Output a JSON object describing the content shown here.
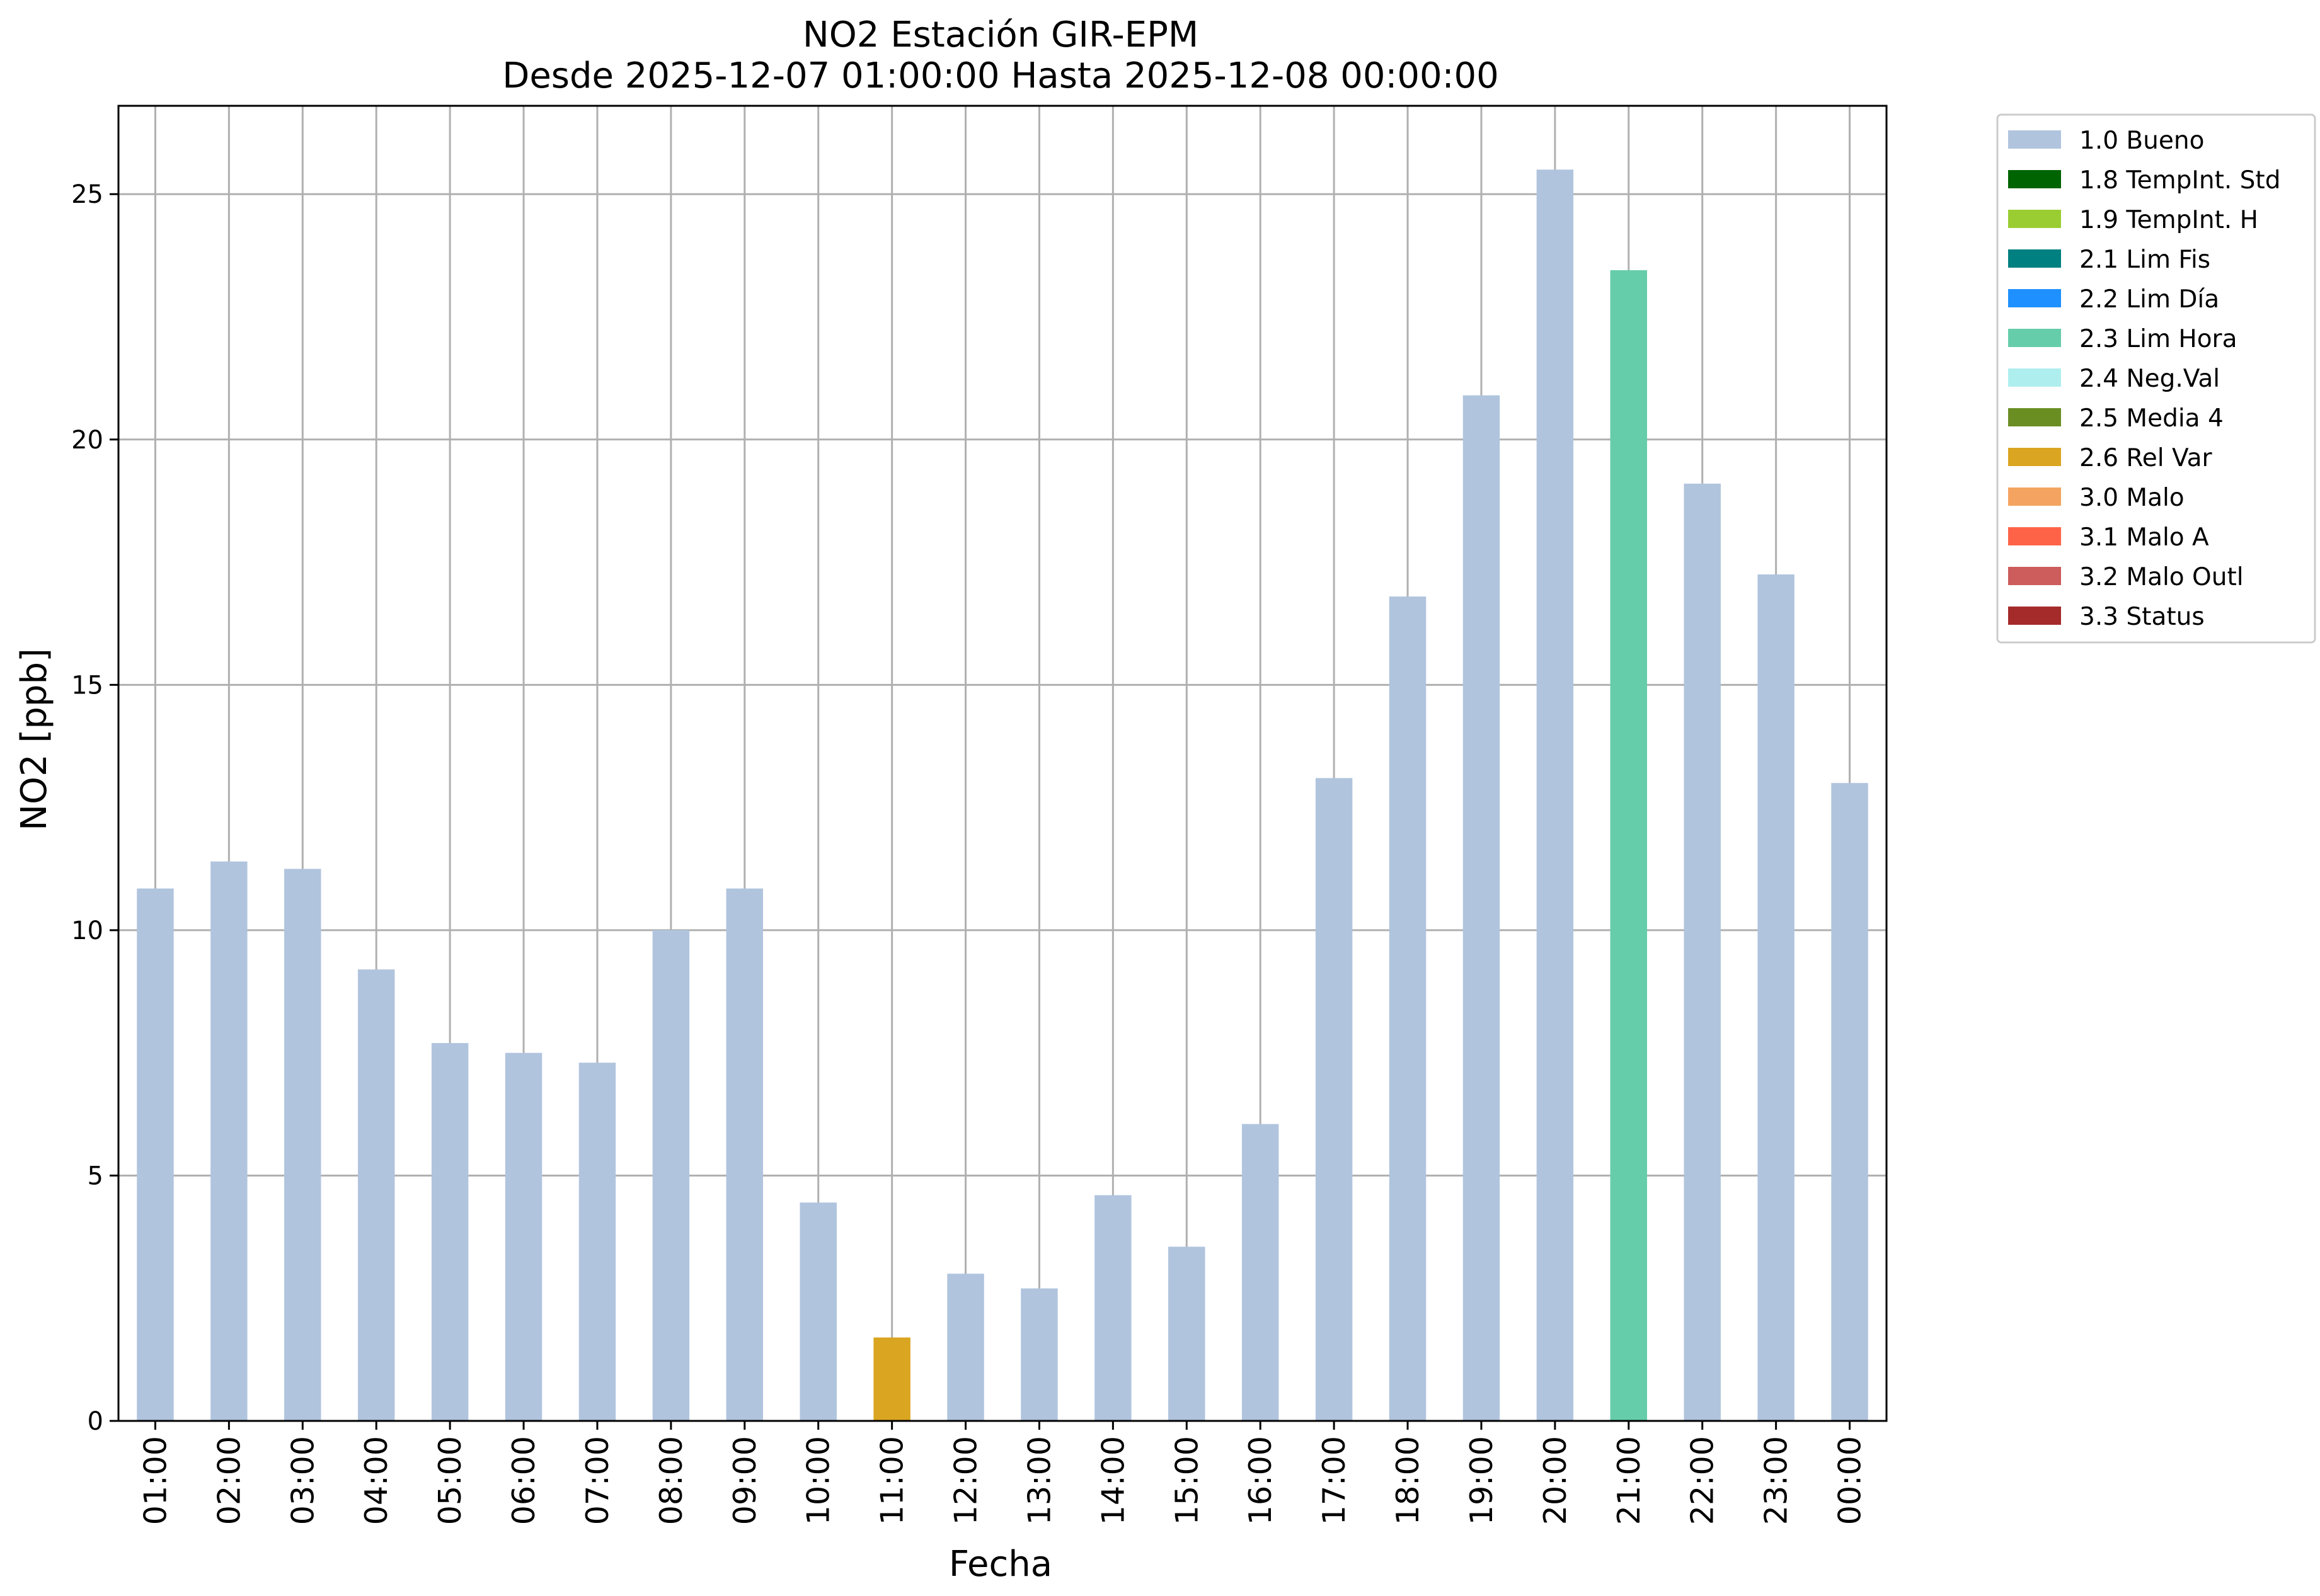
{
  "chart_data": {
    "type": "bar",
    "title": "NO2 Estación GIR-EPM",
    "subtitle": "Desde 2025-12-07 01:00:00 Hasta 2025-12-08 00:00:00",
    "xlabel": "Fecha",
    "ylabel": "NO2 [ppb]",
    "ylim": [
      0,
      26.8
    ],
    "yticks": [
      0,
      5,
      10,
      15,
      20,
      25
    ],
    "grid": true,
    "legend_position": "outside-top-right",
    "categories": [
      "01:00",
      "02:00",
      "03:00",
      "04:00",
      "05:00",
      "06:00",
      "07:00",
      "08:00",
      "09:00",
      "10:00",
      "11:00",
      "12:00",
      "13:00",
      "14:00",
      "15:00",
      "16:00",
      "17:00",
      "18:00",
      "19:00",
      "20:00",
      "21:00",
      "22:00",
      "23:00",
      "00:00"
    ],
    "values": [
      10.85,
      11.4,
      11.25,
      9.2,
      7.7,
      7.5,
      7.3,
      10.0,
      10.85,
      4.45,
      1.7,
      3.0,
      2.7,
      4.6,
      3.55,
      6.05,
      13.1,
      16.8,
      20.9,
      25.5,
      23.45,
      19.1,
      17.25,
      13.0
    ],
    "flags": [
      "1.0 Bueno",
      "1.0 Bueno",
      "1.0 Bueno",
      "1.0 Bueno",
      "1.0 Bueno",
      "1.0 Bueno",
      "1.0 Bueno",
      "1.0 Bueno",
      "1.0 Bueno",
      "1.0 Bueno",
      "2.6 Rel Var",
      "1.0 Bueno",
      "1.0 Bueno",
      "1.0 Bueno",
      "1.0 Bueno",
      "1.0 Bueno",
      "1.0 Bueno",
      "1.0 Bueno",
      "1.0 Bueno",
      "1.0 Bueno",
      "2.3 Lim Hora",
      "1.0 Bueno",
      "1.0 Bueno",
      "1.0 Bueno"
    ],
    "legend": [
      {
        "label": "1.0 Bueno",
        "color": "#b0c4de"
      },
      {
        "label": "1.8 TempInt. Std",
        "color": "#006400"
      },
      {
        "label": "1.9 TempInt. H",
        "color": "#9acd32"
      },
      {
        "label": "2.1 Lim Fis",
        "color": "#008080"
      },
      {
        "label": "2.2 Lim Día",
        "color": "#1e90ff"
      },
      {
        "label": "2.3 Lim Hora",
        "color": "#66cdaa"
      },
      {
        "label": "2.4 Neg.Val",
        "color": "#afeeee"
      },
      {
        "label": "2.5 Media 4",
        "color": "#6b8e23"
      },
      {
        "label": "2.6 Rel Var",
        "color": "#daa520"
      },
      {
        "label": "3.0 Malo",
        "color": "#f4a460"
      },
      {
        "label": "3.1 Malo A",
        "color": "#ff6347"
      },
      {
        "label": "3.2 Malo Outl",
        "color": "#cd5c5c"
      },
      {
        "label": "3.3 Status",
        "color": "#a52a2a"
      }
    ]
  }
}
